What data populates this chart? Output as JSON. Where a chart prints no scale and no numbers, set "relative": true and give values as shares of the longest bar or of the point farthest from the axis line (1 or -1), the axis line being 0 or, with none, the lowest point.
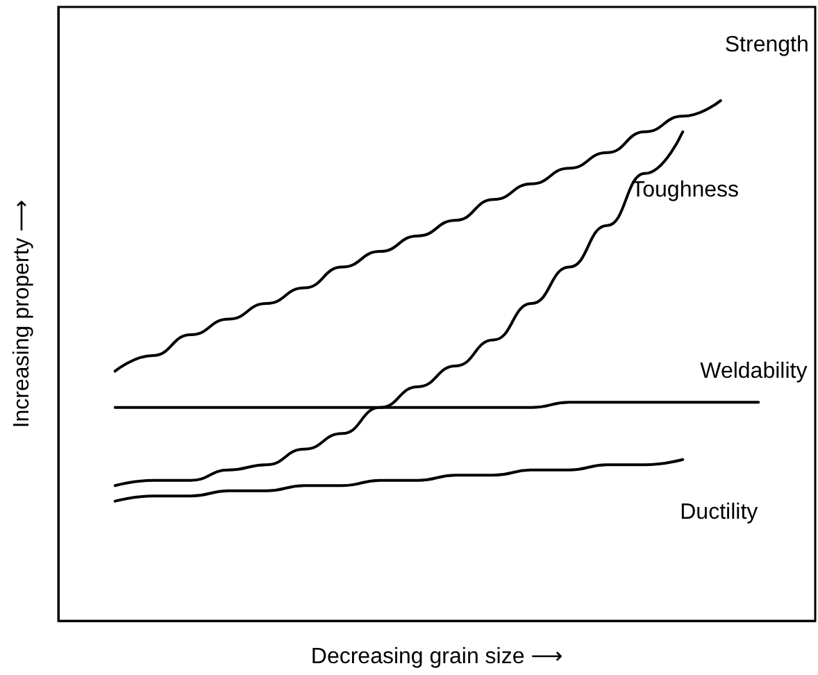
{
  "chart_data": {
    "type": "line",
    "relative": true,
    "xlabel": "Decreasing grain size ⟶",
    "ylabel": "Increasing property ⟶",
    "grid": false,
    "legend": false,
    "marker": "none",
    "line_style": "solid",
    "categories": [
      null,
      null,
      null,
      null,
      null,
      null,
      null,
      null,
      null,
      null,
      null,
      null,
      null,
      null,
      null,
      null,
      null,
      null,
      null,
      null
    ],
    "series": [
      {
        "name": "Strength",
        "color": "#000000",
        "values": [
          null,
          0.48,
          0.51,
          0.55,
          0.58,
          0.61,
          0.64,
          0.68,
          0.71,
          0.74,
          0.77,
          0.81,
          0.84,
          0.87,
          0.9,
          0.94,
          0.97,
          1.0,
          null,
          null
        ]
      },
      {
        "name": "Toughness",
        "color": "#000000",
        "values": [
          null,
          0.26,
          0.27,
          0.27,
          0.29,
          0.3,
          0.33,
          0.36,
          0.41,
          0.45,
          0.49,
          0.54,
          0.61,
          0.68,
          0.76,
          0.86,
          0.94,
          null,
          null,
          null
        ]
      },
      {
        "name": "Weldability",
        "color": "#000000",
        "values": [
          null,
          0.41,
          0.41,
          0.41,
          0.41,
          0.41,
          0.41,
          0.41,
          0.41,
          0.41,
          0.41,
          0.41,
          0.41,
          0.42,
          0.42,
          0.42,
          0.42,
          0.42,
          0.42,
          null
        ]
      },
      {
        "name": "Ductility",
        "color": "#000000",
        "values": [
          null,
          0.23,
          0.24,
          0.24,
          0.25,
          0.25,
          0.26,
          0.26,
          0.27,
          0.27,
          0.28,
          0.28,
          0.29,
          0.29,
          0.3,
          0.3,
          0.31,
          null,
          null,
          null
        ]
      }
    ]
  }
}
